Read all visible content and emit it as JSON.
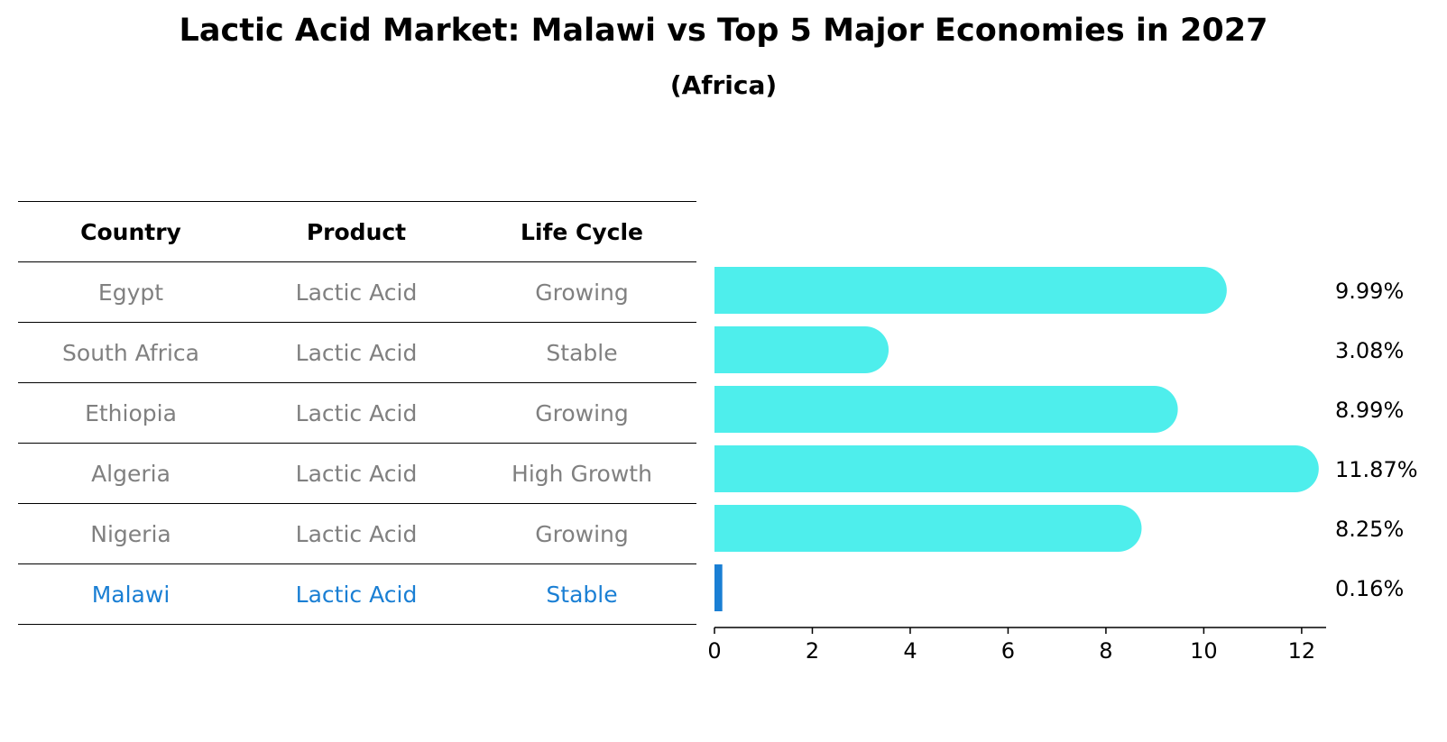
{
  "title": "Lactic Acid Market: Malawi vs Top 5 Major Economies in 2027",
  "subtitle": "(Africa)",
  "table": {
    "headers": [
      "Country",
      "Product",
      "Life Cycle"
    ],
    "rows": [
      {
        "country": "Egypt",
        "product": "Lactic Acid",
        "life_cycle": "Growing"
      },
      {
        "country": "South Africa",
        "product": "Lactic Acid",
        "life_cycle": "Stable"
      },
      {
        "country": "Ethiopia",
        "product": "Lactic Acid",
        "life_cycle": "Growing"
      },
      {
        "country": "Algeria",
        "product": "Lactic Acid",
        "life_cycle": "High Growth"
      },
      {
        "country": "Nigeria",
        "product": "Lactic Acid",
        "life_cycle": "Growing"
      },
      {
        "country": "Malawi",
        "product": "Lactic Acid",
        "life_cycle": "Stable"
      }
    ]
  },
  "chart_data": {
    "type": "bar",
    "orientation": "horizontal",
    "categories": [
      "Egypt",
      "South Africa",
      "Ethiopia",
      "Algeria",
      "Nigeria",
      "Malawi"
    ],
    "values": [
      9.99,
      3.08,
      8.99,
      11.87,
      8.25,
      0.16
    ],
    "value_labels": [
      "9.99%",
      "3.08%",
      "8.99%",
      "11.87%",
      "8.25%",
      "0.16%"
    ],
    "xlim": [
      0,
      12.5
    ],
    "xticks": [
      0,
      2,
      4,
      6,
      8,
      10,
      12
    ],
    "grid": false,
    "colors": {
      "bar": "#4eeeec",
      "highlight": "#1a7fd4",
      "highlight_index": 5
    }
  }
}
